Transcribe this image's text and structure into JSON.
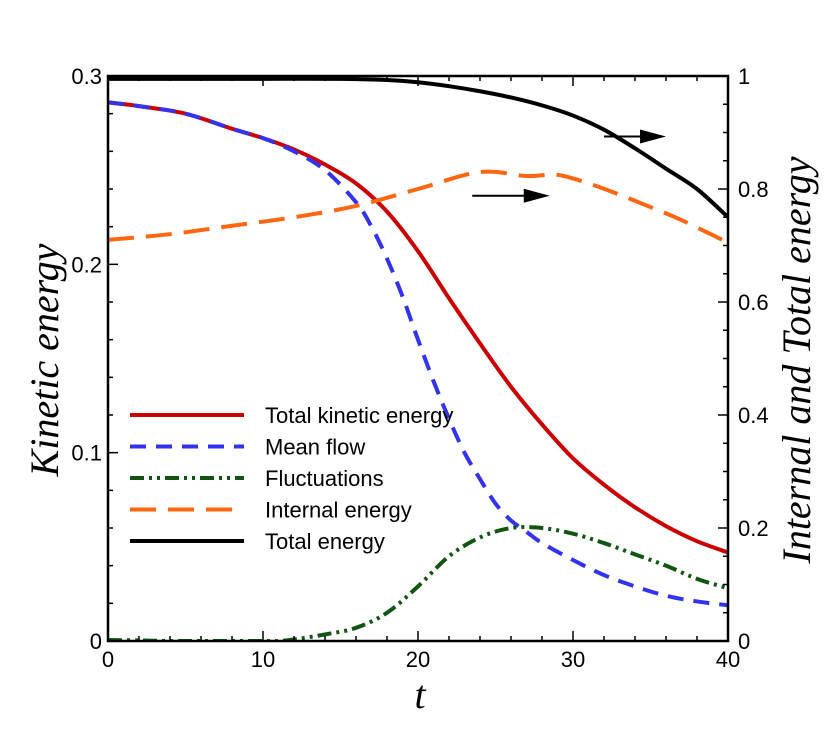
{
  "chart_data": {
    "type": "line",
    "xlabel": "t",
    "ylabel": "Kinetic energy",
    "y2label": "Internal and Total energy",
    "xlim": [
      0,
      40
    ],
    "ylim": [
      0,
      0.3
    ],
    "y2lim": [
      0,
      1
    ],
    "x_ticks": [
      0,
      10,
      20,
      30,
      40
    ],
    "x_tick_labels": [
      "0",
      "10",
      "20",
      "30",
      "40"
    ],
    "y_ticks": [
      0,
      0.1,
      0.2,
      0.3
    ],
    "y_tick_labels": [
      "0",
      "0.1",
      "0.2",
      "0.3"
    ],
    "y2_ticks": [
      0,
      0.2,
      0.4,
      0.6,
      0.8,
      1
    ],
    "y2_tick_labels": [
      "0",
      "0.2",
      "0.4",
      "0.6",
      "0.8",
      "1"
    ],
    "grid": false,
    "legend_position": "lower-left",
    "series": [
      {
        "name": "Total kinetic energy",
        "axis": "left",
        "color": "#cc0000",
        "style": "solid",
        "x": [
          0,
          2,
          5,
          8,
          10,
          12,
          14,
          16,
          18,
          20,
          22,
          24,
          26,
          28,
          30,
          32,
          34,
          36,
          38,
          40
        ],
        "y": [
          0.286,
          0.284,
          0.28,
          0.272,
          0.267,
          0.261,
          0.253,
          0.243,
          0.228,
          0.207,
          0.182,
          0.158,
          0.135,
          0.115,
          0.097,
          0.083,
          0.071,
          0.061,
          0.053,
          0.047
        ]
      },
      {
        "name": "Mean flow",
        "axis": "left",
        "color": "#3333ee",
        "style": "dashed",
        "x": [
          0,
          2,
          5,
          8,
          10,
          12,
          14,
          16,
          17,
          18,
          19,
          20,
          21,
          22,
          23,
          24,
          25,
          26,
          27,
          28,
          30,
          32,
          34,
          36,
          38,
          40
        ],
        "y": [
          0.286,
          0.284,
          0.28,
          0.272,
          0.267,
          0.26,
          0.25,
          0.233,
          0.22,
          0.203,
          0.183,
          0.16,
          0.138,
          0.118,
          0.1,
          0.086,
          0.073,
          0.064,
          0.058,
          0.052,
          0.043,
          0.035,
          0.029,
          0.024,
          0.021,
          0.019
        ]
      },
      {
        "name": "Fluctuations",
        "axis": "left",
        "color": "#115511",
        "style": "dash-dot-dot",
        "x": [
          0,
          2,
          4,
          6,
          8,
          10,
          11,
          12,
          14,
          16,
          18,
          20,
          22,
          24,
          26,
          28,
          30,
          32,
          34,
          36,
          38,
          40
        ],
        "y": [
          0.0005,
          0.0003,
          0,
          0,
          0,
          0,
          0,
          0.0008,
          0.0035,
          0.007,
          0.015,
          0.029,
          0.045,
          0.055,
          0.06,
          0.06,
          0.057,
          0.052,
          0.046,
          0.04,
          0.033,
          0.028
        ]
      },
      {
        "name": "Internal energy",
        "axis": "right",
        "color": "#ff6611",
        "style": "long-dashed",
        "x": [
          0,
          4,
          8,
          12,
          16,
          20,
          24,
          27,
          29,
          31,
          33,
          35,
          37,
          40
        ],
        "y": [
          0.71,
          0.72,
          0.735,
          0.75,
          0.77,
          0.8,
          0.83,
          0.823,
          0.825,
          0.81,
          0.79,
          0.768,
          0.745,
          0.705
        ]
      },
      {
        "name": "Total energy",
        "axis": "right",
        "color": "#000000",
        "style": "solid",
        "x": [
          0,
          5,
          10,
          15,
          18,
          20,
          22,
          24,
          26,
          28,
          30,
          32,
          34,
          36,
          38,
          40
        ],
        "y": [
          0.995,
          0.995,
          0.995,
          0.995,
          0.993,
          0.989,
          0.982,
          0.973,
          0.962,
          0.948,
          0.93,
          0.905,
          0.872,
          0.836,
          0.8,
          0.75
        ]
      }
    ],
    "annotations": [
      {
        "type": "arrow",
        "direction": "right",
        "from": [
          32,
          0.893
        ],
        "to": [
          36,
          0.893
        ],
        "axis": "right"
      },
      {
        "type": "arrow",
        "direction": "right",
        "from": [
          23.5,
          0.788
        ],
        "to": [
          28.5,
          0.788
        ],
        "axis": "right"
      }
    ]
  }
}
